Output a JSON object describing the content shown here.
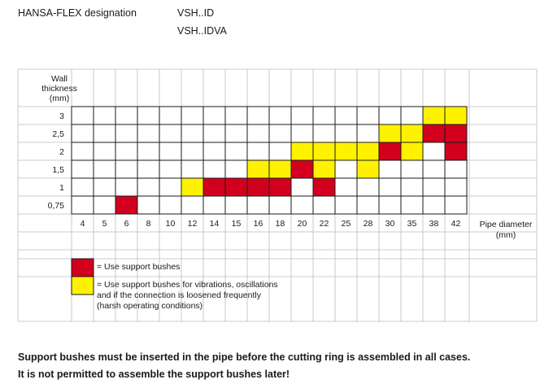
{
  "header": {
    "label": "HANSA-FLEX designation",
    "designations": [
      "VSH..ID",
      "VSH..IDVA"
    ]
  },
  "table": {
    "y_axis_label": [
      "Wall",
      "thickness",
      "(mm)"
    ],
    "x_axis_label": [
      "Pipe diameter",
      "(mm)"
    ],
    "wall_thickness": [
      "3",
      "2,5",
      "2",
      "1,5",
      "1",
      "0,75"
    ],
    "pipe_diameter": [
      "4",
      "5",
      "6",
      "8",
      "10",
      "12",
      "14",
      "15",
      "16",
      "18",
      "20",
      "22",
      "25",
      "28",
      "30",
      "35",
      "38",
      "42"
    ],
    "cell_codes": [
      "0000000000000000YY",
      "00000000000000YYRR",
      "0000000000YYYYRY0R",
      "00000000YYRY0Y0000",
      "00000YRRRR0R000000",
      "00R000000000000000"
    ]
  },
  "legend": [
    {
      "color": "#d2001e",
      "lines": [
        "= Use support bushes"
      ]
    },
    {
      "color": "#fff200",
      "lines": [
        "= Use support bushes for vibrations, oscillations",
        "and if the connection is loosened frequently",
        "(harsh operating conditions)"
      ]
    }
  ],
  "colors": {
    "red": "#d2001e",
    "yellow": "#fff200",
    "grid": "#bcbcbc",
    "cell_border": "#1a1a1a"
  },
  "notes": [
    "Support bushes must be inserted in the pipe before the cutting ring is assembled in all cases.",
    "It is not permitted to assemble the support bushes later!"
  ]
}
